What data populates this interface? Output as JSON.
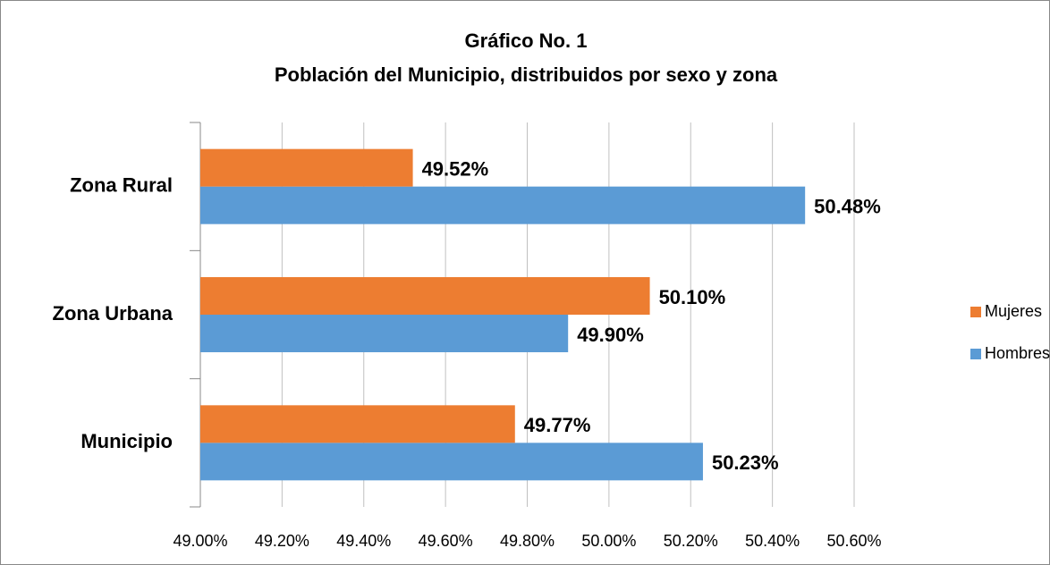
{
  "chart_data": {
    "type": "bar",
    "orientation": "horizontal",
    "title": [
      "Gráfico No. 1",
      "Población del Municipio, distribuidos por sexo y zona"
    ],
    "categories": [
      "Municipio",
      "Zona Urbana",
      "Zona Rural"
    ],
    "series": [
      {
        "name": "Hombres",
        "color": "#5b9bd5",
        "values": [
          50.23,
          49.9,
          50.48
        ],
        "value_labels": [
          "50.23%",
          "49.90%",
          "50.48%"
        ]
      },
      {
        "name": "Mujeres",
        "color": "#ed7d31",
        "values": [
          49.77,
          50.1,
          49.52
        ],
        "value_labels": [
          "49.77%",
          "50.10%",
          "49.52%"
        ]
      }
    ],
    "xlim": [
      49,
      50.6
    ],
    "xticks": [
      {
        "value": 49,
        "label": "49.00%"
      },
      {
        "value": 49.2,
        "label": "49.20%"
      },
      {
        "value": 49.4,
        "label": "49.40%"
      },
      {
        "value": 49.6,
        "label": "49.60%"
      },
      {
        "value": 49.8,
        "label": "49.80%"
      },
      {
        "value": 50,
        "label": "50.00%"
      },
      {
        "value": 50.2,
        "label": "50.20%"
      },
      {
        "value": 50.4,
        "label": "50.40%"
      },
      {
        "value": 50.6,
        "label": "50.60%"
      }
    ],
    "grid": true,
    "legend": "right"
  }
}
